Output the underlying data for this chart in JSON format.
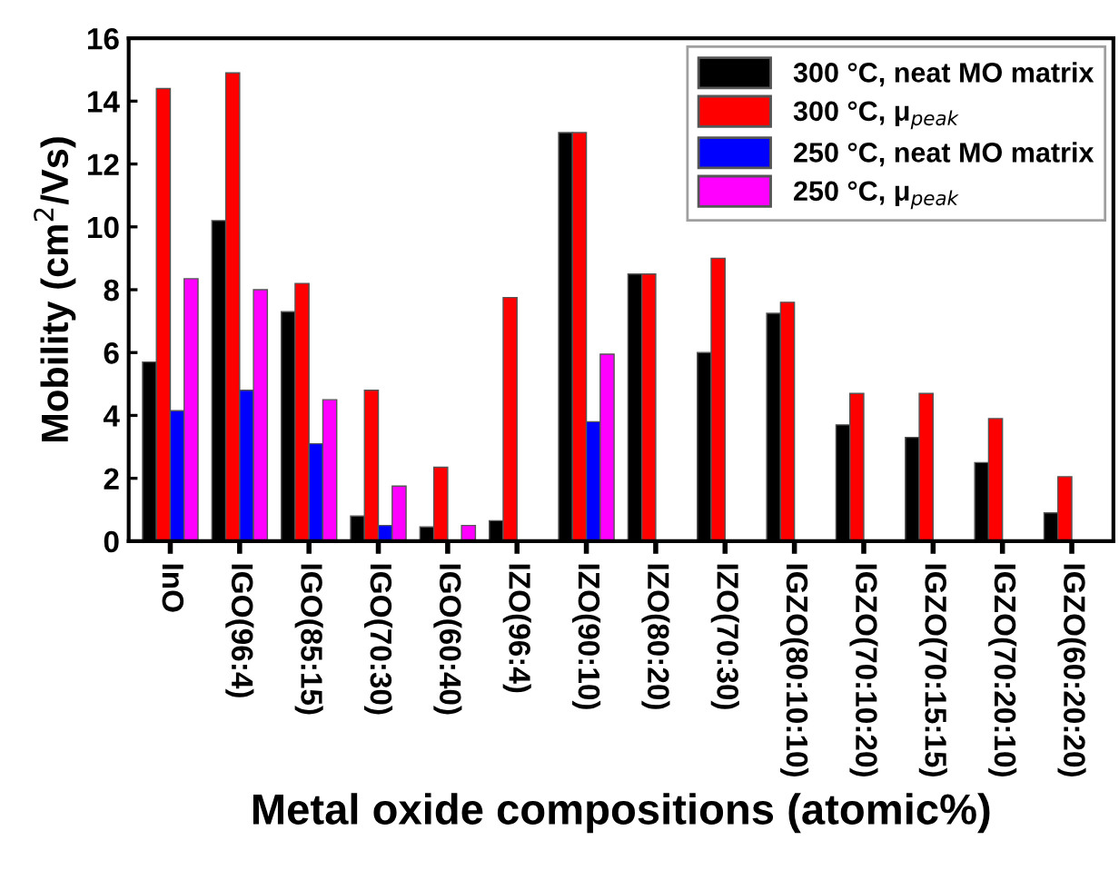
{
  "chart_data": {
    "type": "bar",
    "xlabel": "Metal oxide compositions (atomic%)",
    "ylabel": "Mobility (cm$^{2}$/Vs)",
    "categories": [
      "InO",
      "IGO(96:4)",
      "IGO(85:15)",
      "IGO(70:30)",
      "IGO(60:40)",
      "IZO(96:4)",
      "IZO(90:10)",
      "IZO(80:20)",
      "IZO(70:30)",
      "IGZO(80:10:10)",
      "IGZO(70:10:20)",
      "IGZO(70:15:15)",
      "IGZO(70:20:10)",
      "IGZO(60:20:20)"
    ],
    "series": [
      {
        "name": "300 °C, neat MO matrix",
        "color": "#000000",
        "values": [
          5.7,
          10.2,
          7.3,
          0.8,
          0.45,
          0.65,
          13.0,
          8.5,
          6.0,
          7.25,
          3.7,
          3.3,
          2.5,
          0.9
        ]
      },
      {
        "name": "300 °C, μ$_{peak}$",
        "color": "#ff0000",
        "values": [
          14.4,
          14.9,
          8.2,
          4.8,
          2.35,
          7.75,
          13.0,
          8.5,
          9.0,
          7.6,
          4.7,
          4.7,
          3.9,
          2.05
        ]
      },
      {
        "name": "250 °C, neat MO matrix",
        "color": "#0000ff",
        "values": [
          4.15,
          4.8,
          3.1,
          0.5,
          null,
          null,
          3.8,
          null,
          null,
          null,
          null,
          null,
          null,
          null
        ]
      },
      {
        "name": "250 °C, μ$_{peak}$",
        "color": "#ff00ff",
        "values": [
          8.35,
          8.0,
          4.5,
          1.75,
          0.5,
          null,
          5.95,
          null,
          null,
          null,
          null,
          null,
          null,
          null
        ]
      }
    ],
    "ylim": [
      0,
      16
    ],
    "yticks": [
      0,
      2,
      4,
      6,
      8,
      10,
      12,
      14,
      16
    ],
    "grid": false,
    "legend": "top right"
  }
}
